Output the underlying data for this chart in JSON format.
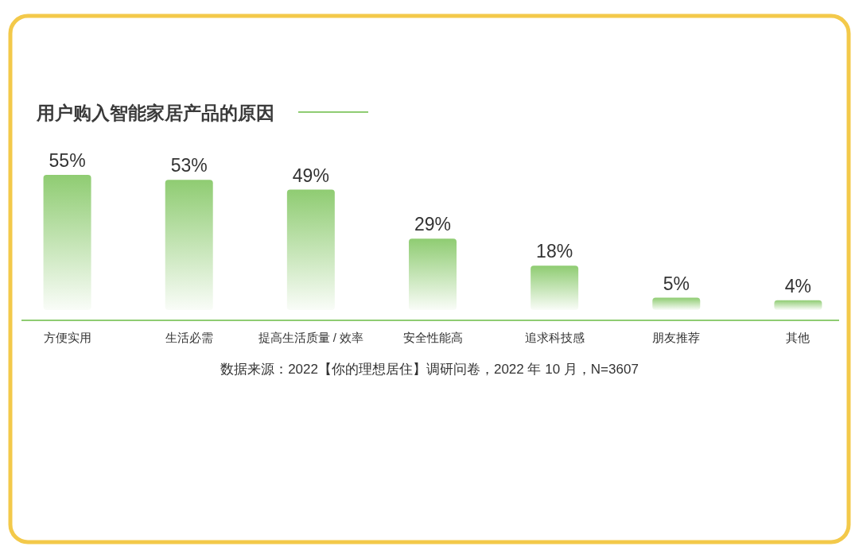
{
  "chart_data": {
    "type": "bar",
    "title": "用户购入智能家居产品的原因",
    "categories": [
      "方便实用",
      "生活必需",
      "提高生活质量 / 效率",
      "安全性能高",
      "追求科技感",
      "朋友推荐",
      "其他"
    ],
    "values": [
      55,
      53,
      49,
      29,
      18,
      5,
      4
    ],
    "value_labels": [
      "55%",
      "53%",
      "49%",
      "29%",
      "18%",
      "5%",
      "4%"
    ],
    "color": "#8fcc72",
    "annotations": [
      "数据来源：2022【你的理想居住】调研问卷，2022 年 10 月，N=3607"
    ]
  }
}
